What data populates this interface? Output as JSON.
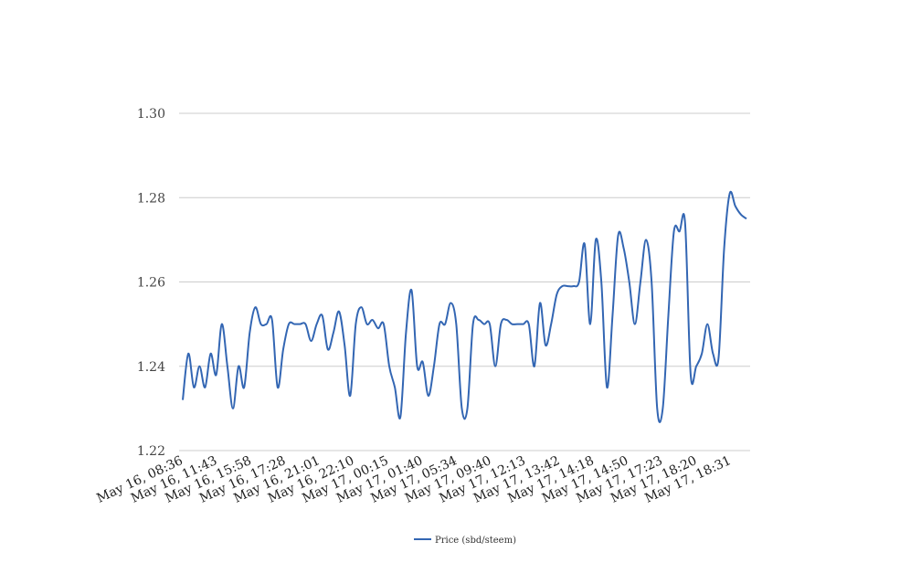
{
  "chart_data": {
    "type": "line",
    "ylim": [
      1.22,
      1.3
    ],
    "yticks": [
      "1.22",
      "1.24",
      "1.26",
      "1.28",
      "1.30"
    ],
    "grid": true,
    "legend_position": "bottom-center",
    "line_color": "#3366b3",
    "grid_color": "#cccccc",
    "xtick_labels": [
      "May 16, 08:36",
      "May 16, 11:43",
      "May 16, 15:58",
      "May 16, 17:28",
      "May 16, 21:01",
      "May 16, 22:10",
      "May 17, 00:15",
      "May 17, 01:40",
      "May 17, 05:34",
      "May 17, 09:40",
      "May 17, 12:13",
      "May 17, 13:42",
      "May 17, 14:18",
      "May 17, 14:50",
      "May 17, 17:23",
      "May 17, 18:20",
      "May 17, 18:31"
    ],
    "series": [
      {
        "name": "Price (sbd/steem)",
        "values": [
          1.232,
          1.243,
          1.235,
          1.24,
          1.235,
          1.243,
          1.238,
          1.25,
          1.24,
          1.23,
          1.24,
          1.235,
          1.248,
          1.254,
          1.25,
          1.25,
          1.251,
          1.235,
          1.244,
          1.25,
          1.25,
          1.25,
          1.25,
          1.246,
          1.25,
          1.252,
          1.244,
          1.248,
          1.253,
          1.245,
          1.233,
          1.25,
          1.254,
          1.25,
          1.251,
          1.249,
          1.25,
          1.24,
          1.235,
          1.228,
          1.248,
          1.258,
          1.24,
          1.241,
          1.233,
          1.24,
          1.25,
          1.25,
          1.255,
          1.25,
          1.23,
          1.23,
          1.25,
          1.251,
          1.25,
          1.25,
          1.24,
          1.25,
          1.251,
          1.25,
          1.25,
          1.25,
          1.25,
          1.24,
          1.255,
          1.245,
          1.25,
          1.257,
          1.259,
          1.259,
          1.259,
          1.26,
          1.269,
          1.25,
          1.27,
          1.26,
          1.235,
          1.252,
          1.271,
          1.268,
          1.26,
          1.25,
          1.26,
          1.27,
          1.26,
          1.23,
          1.23,
          1.252,
          1.272,
          1.272,
          1.274,
          1.238,
          1.24,
          1.243,
          1.25,
          1.243,
          1.242,
          1.268,
          1.281,
          1.278,
          1.276,
          1.275
        ]
      }
    ]
  }
}
